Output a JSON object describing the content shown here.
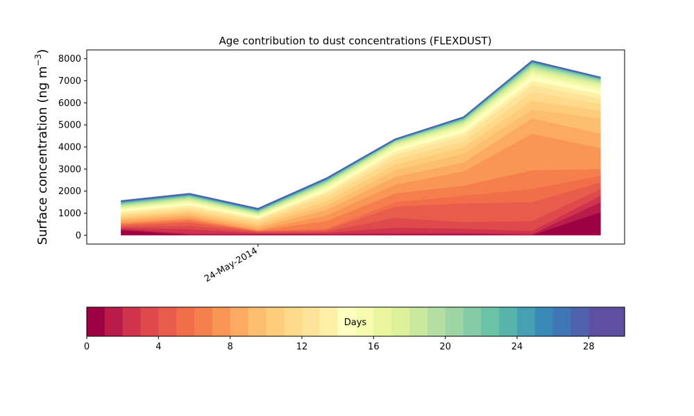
{
  "chart_data": {
    "type": "area",
    "title": "Age contribution to dust concentrations (FLEXDUST)",
    "ylabel": "Surface concentration (ng m",
    "ylabel_superscript": "−3",
    "ylabel_close": ")",
    "ylim": [
      -400,
      8400
    ],
    "yticks": [
      0,
      1000,
      2000,
      3000,
      4000,
      5000,
      6000,
      7000,
      8000
    ],
    "x": [
      0,
      1,
      2,
      3,
      4,
      5,
      6,
      7
    ],
    "xlim": [
      -0.5,
      7.35
    ],
    "xticks": [
      {
        "x": 2,
        "label": "24-May-2014"
      }
    ],
    "totals": [
      1550,
      1880,
      1200,
      2580,
      4350,
      5350,
      7900,
      7150
    ],
    "cumulative_bands": [
      {
        "age_days": 1,
        "values": [
          230,
          20,
          40,
          30,
          30,
          50,
          10,
          1050
        ]
      },
      {
        "age_days": 2,
        "values": [
          280,
          80,
          60,
          60,
          100,
          100,
          60,
          1500
        ]
      },
      {
        "age_days": 3,
        "values": [
          330,
          280,
          100,
          120,
          350,
          300,
          200,
          1800
        ]
      },
      {
        "age_days": 4,
        "values": [
          380,
          430,
          150,
          180,
          800,
          600,
          650,
          2100
        ]
      },
      {
        "age_days": 5,
        "values": [
          450,
          580,
          180,
          250,
          1300,
          1450,
          1500,
          2400
        ]
      },
      {
        "age_days": 6,
        "values": [
          500,
          650,
          200,
          300,
          1500,
          1800,
          2100,
          2700
        ]
      },
      {
        "age_days": 7,
        "values": [
          530,
          720,
          210,
          650,
          1900,
          2250,
          2950,
          3000
        ]
      },
      {
        "age_days": 8,
        "values": [
          600,
          800,
          250,
          900,
          2300,
          2900,
          4600,
          3950
        ]
      },
      {
        "age_days": 9,
        "values": [
          700,
          900,
          350,
          1150,
          2650,
          3300,
          5300,
          4600
        ]
      },
      {
        "age_days": 10,
        "values": [
          780,
          1000,
          450,
          1350,
          2950,
          3700,
          5700,
          5300
        ]
      },
      {
        "age_days": 11,
        "values": [
          850,
          1080,
          550,
          1550,
          3200,
          4000,
          6100,
          5650
        ]
      },
      {
        "age_days": 12,
        "values": [
          930,
          1180,
          650,
          1750,
          3450,
          4250,
          6500,
          5950
        ]
      },
      {
        "age_days": 13,
        "values": [
          1000,
          1280,
          720,
          1900,
          3650,
          4500,
          6800,
          6200
        ]
      },
      {
        "age_days": 14,
        "values": [
          1080,
          1370,
          780,
          2000,
          3800,
          4650,
          7000,
          6400
        ]
      },
      {
        "age_days": 15,
        "values": [
          1150,
          1450,
          840,
          2100,
          3920,
          4800,
          7200,
          6550
        ]
      },
      {
        "age_days": 16,
        "values": [
          1200,
          1520,
          890,
          2180,
          4010,
          4920,
          7330,
          6680
        ]
      },
      {
        "age_days": 17,
        "values": [
          1250,
          1580,
          930,
          2250,
          4080,
          5000,
          7440,
          6780
        ]
      },
      {
        "age_days": 18,
        "values": [
          1300,
          1630,
          970,
          2310,
          4140,
          5070,
          7530,
          6860
        ]
      },
      {
        "age_days": 19,
        "values": [
          1340,
          1680,
          1010,
          2360,
          4190,
          5130,
          7610,
          6930
        ]
      },
      {
        "age_days": 20,
        "values": [
          1380,
          1720,
          1040,
          2400,
          4230,
          5180,
          7680,
          6990
        ]
      },
      {
        "age_days": 21,
        "values": [
          1410,
          1750,
          1070,
          2440,
          4260,
          5220,
          7730,
          7030
        ]
      },
      {
        "age_days": 22,
        "values": [
          1440,
          1780,
          1100,
          2470,
          4280,
          5250,
          7770,
          7070
        ]
      },
      {
        "age_days": 23,
        "values": [
          1470,
          1800,
          1120,
          2500,
          4300,
          5280,
          7810,
          7090
        ]
      },
      {
        "age_days": 24,
        "values": [
          1490,
          1820,
          1140,
          2520,
          4310,
          5300,
          7840,
          7110
        ]
      },
      {
        "age_days": 25,
        "values": [
          1505,
          1840,
          1160,
          2540,
          4320,
          5315,
          7860,
          7120
        ]
      },
      {
        "age_days": 26,
        "values": [
          1520,
          1855,
          1175,
          2555,
          4330,
          5325,
          7875,
          7130
        ]
      },
      {
        "age_days": 27,
        "values": [
          1530,
          1865,
          1185,
          2565,
          4338,
          5335,
          7885,
          7138
        ]
      },
      {
        "age_days": 28,
        "values": [
          1540,
          1873,
          1193,
          2573,
          4344,
          5343,
          7893,
          7144
        ]
      },
      {
        "age_days": 29,
        "values": [
          1546,
          1878,
          1198,
          2578,
          4348,
          5348,
          7898,
          7148
        ]
      },
      {
        "age_days": 30,
        "values": [
          1550,
          1880,
          1200,
          2580,
          4350,
          5350,
          7900,
          7150
        ]
      }
    ],
    "colormap": [
      "#9e0142",
      "#b91c48",
      "#d0334b",
      "#de4a4c",
      "#e75c4a",
      "#f26d4a",
      "#f67e4c",
      "#f99655",
      "#fcaa5f",
      "#fdbe6f",
      "#fecc7b",
      "#fed98a",
      "#fee49a",
      "#fff0a8",
      "#ffffbf",
      "#f6fbb0",
      "#eaf79f",
      "#dcf19a",
      "#c8e99e",
      "#b3e0a2",
      "#9dd6a4",
      "#84cca5",
      "#6bc3a5",
      "#57b4ad",
      "#46a0b3",
      "#3a8ab9",
      "#4176b4",
      "#4f63ad",
      "#5e4fa2",
      "#5e4fa2"
    ]
  },
  "colorbar": {
    "label": "Days",
    "range": [
      0,
      30
    ],
    "ticks": [
      0,
      4,
      8,
      12,
      16,
      20,
      24,
      28
    ],
    "colors": [
      "#9e0142",
      "#b91c48",
      "#d0334b",
      "#de4a4c",
      "#e75c4a",
      "#f26d4a",
      "#f67e4c",
      "#f99655",
      "#fcaa5f",
      "#fdbe6f",
      "#fecc7b",
      "#fed98a",
      "#fee49a",
      "#fff0a8",
      "#ffffbf",
      "#f6fbb0",
      "#eaf79f",
      "#dcf19a",
      "#c8e99e",
      "#b3e0a2",
      "#9dd6a4",
      "#84cca5",
      "#6bc3a5",
      "#57b4ad",
      "#46a0b3",
      "#3a8ab9",
      "#4176b4",
      "#4f63ad",
      "#5e4fa2",
      "#5e4fa2"
    ]
  }
}
